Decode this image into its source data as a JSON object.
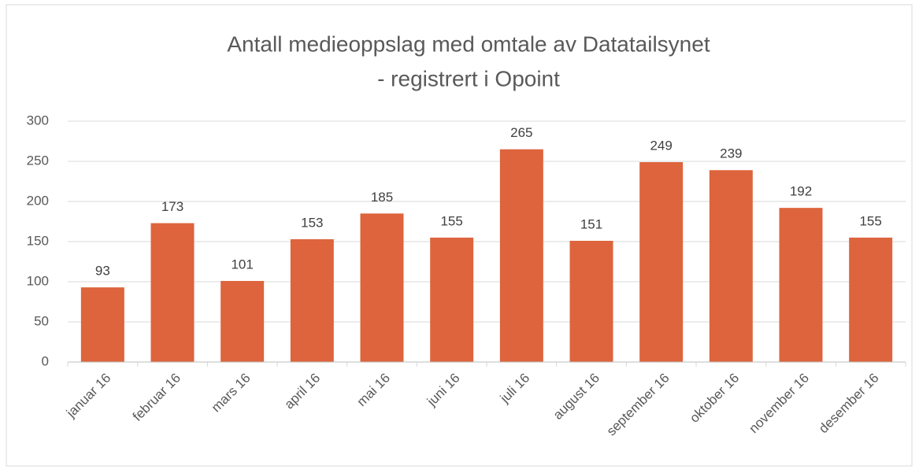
{
  "chart_data": {
    "type": "bar",
    "title": "Antall medieoppslag med omtale av Datatailsynet",
    "subtitle": "- registrert i Opoint",
    "categories": [
      "januar 16",
      "februar 16",
      "mars 16",
      "april 16",
      "mai 16",
      "juni 16",
      "juli 16",
      "august 16",
      "september 16",
      "oktober 16",
      "november 16",
      "desember 16"
    ],
    "values": [
      93,
      173,
      101,
      153,
      185,
      155,
      265,
      151,
      249,
      239,
      192,
      155
    ],
    "color": "#dd643c",
    "ylim": [
      0,
      300
    ],
    "yticks": [
      0,
      50,
      100,
      150,
      200,
      250,
      300
    ],
    "grid": true
  }
}
